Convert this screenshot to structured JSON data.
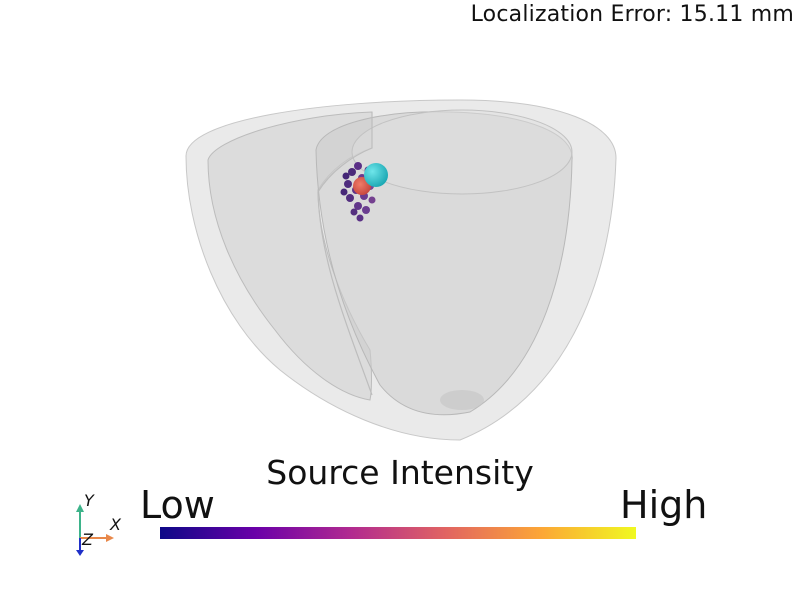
{
  "overlay": {
    "error_label": "Localization Error: 15.11 mm"
  },
  "colorbar": {
    "title": "Source Intensity",
    "low_label": "Low",
    "high_label": "High",
    "colormap": "plasma",
    "stops": [
      "#0d0887",
      "#6a00a8",
      "#b12a90",
      "#e16462",
      "#fca636",
      "#f0f921"
    ]
  },
  "scene": {
    "heart_mesh_color": "#d9d9d9",
    "true_source_color": "#2ec4d0",
    "estimated_source_color": "#e05a4a"
  },
  "orientation_axes": {
    "x_label": "X",
    "y_label": "Y",
    "z_label": "Z",
    "x_color": "#e8884a",
    "y_color": "#3db38a",
    "z_color": "#1f2fc8"
  }
}
